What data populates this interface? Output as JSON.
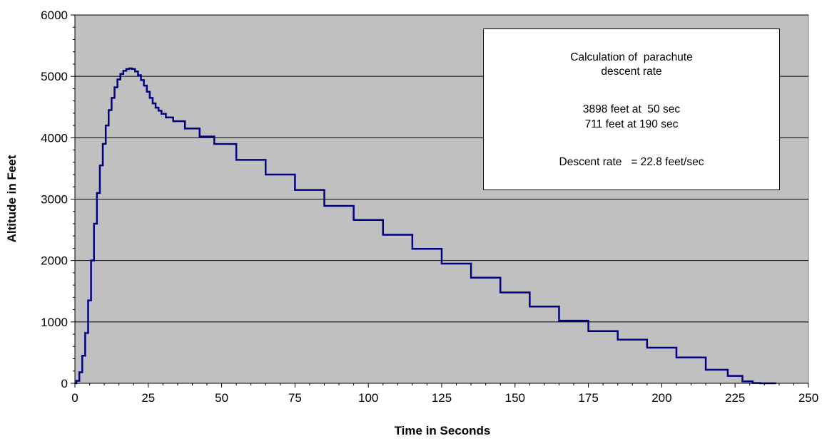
{
  "chart_data": {
    "type": "line",
    "xlabel": "Time in Seconds",
    "ylabel": "Altitude in Feet",
    "xlim": [
      0,
      250
    ],
    "ylim": [
      0,
      6000
    ],
    "x_ticks": [
      0,
      25,
      50,
      75,
      100,
      125,
      150,
      175,
      200,
      225,
      250
    ],
    "y_ticks": [
      0,
      1000,
      2000,
      3000,
      4000,
      5000,
      6000
    ],
    "grid": "horizontal major gridlines",
    "plot_background": "#C0C0C0",
    "line_color": "#000080",
    "series": [
      {
        "x": [
          0,
          1,
          2,
          3,
          4,
          5,
          6,
          7,
          8,
          9,
          10,
          11,
          12,
          13,
          14,
          15,
          16,
          17,
          18,
          19,
          20,
          21,
          22,
          23,
          24,
          25,
          26,
          27,
          28,
          29,
          30,
          32,
          35,
          40,
          45,
          50,
          60,
          70,
          80,
          90,
          100,
          110,
          120,
          130,
          140,
          150,
          160,
          170,
          180,
          190,
          200,
          210,
          220,
          225,
          230,
          232,
          235,
          239
        ],
        "y": [
          0,
          40,
          180,
          450,
          820,
          1350,
          2000,
          2600,
          3100,
          3550,
          3900,
          4200,
          4450,
          4650,
          4820,
          4950,
          5040,
          5090,
          5120,
          5130,
          5120,
          5080,
          5020,
          4940,
          4850,
          4750,
          4650,
          4560,
          4490,
          4440,
          4390,
          4330,
          4270,
          4150,
          4020,
          3898,
          3640,
          3400,
          3150,
          2890,
          2660,
          2420,
          2190,
          1950,
          1720,
          1480,
          1250,
          1020,
          850,
          711,
          580,
          420,
          220,
          120,
          30,
          5,
          0,
          0
        ]
      }
    ],
    "annotation": {
      "lines": [
        "Calculation of  parachute",
        "descent rate",
        "",
        "3898 feet at  50 sec",
        "711 feet at 190 sec",
        "",
        "Descent rate   = 22.8 feet/sec"
      ]
    }
  }
}
